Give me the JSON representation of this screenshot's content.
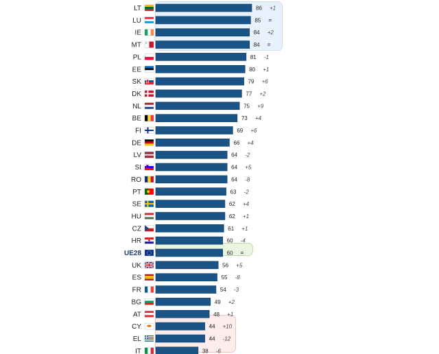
{
  "colors": {
    "bar": "#1a5486",
    "bar_edge": "#0d3a61",
    "text": "#222222",
    "change_text": "#444444",
    "highlight_top_bg": "#e7f1fb",
    "highlight_avg_bg": "#e9f5e0",
    "highlight_bottom_bg": "#fcecec"
  },
  "chart_data": {
    "type": "bar",
    "orientation": "horizontal",
    "title": "",
    "xlabel": "",
    "ylabel": "",
    "xlim": [
      0,
      100
    ],
    "grid": false,
    "legend": "none",
    "categories": [
      "LT",
      "LU",
      "IE",
      "MT",
      "PL",
      "EE",
      "SK",
      "DK",
      "NL",
      "BE",
      "FI",
      "DE",
      "LV",
      "SI",
      "RO",
      "PT",
      "SE",
      "HU",
      "CZ",
      "HR",
      "UE28",
      "UK",
      "ES",
      "FR",
      "BG",
      "AT",
      "CY",
      "EL",
      "IT"
    ],
    "values": [
      86,
      85,
      84,
      84,
      81,
      80,
      79,
      77,
      75,
      73,
      69,
      66,
      64,
      64,
      64,
      63,
      62,
      62,
      61,
      60,
      60,
      56,
      55,
      54,
      49,
      48,
      44,
      44,
      38
    ],
    "changes": [
      "+1",
      "=",
      "+2",
      "=",
      "-1",
      "+1",
      "+6",
      "+2",
      "+9",
      "+4",
      "+6",
      "+4",
      "-2",
      "+5",
      "-8",
      "-2",
      "+4",
      "+1",
      "+1",
      "-4",
      "=",
      "+5",
      "-8",
      "-3",
      "+2",
      "+1",
      "+10",
      "-12",
      "-6"
    ],
    "flags": [
      "lithuania-flag",
      "luxembourg-flag",
      "ireland-flag",
      "malta-flag",
      "poland-flag",
      "estonia-flag",
      "slovakia-flag",
      "denmark-flag",
      "netherlands-flag",
      "belgium-flag",
      "finland-flag",
      "germany-flag",
      "latvia-flag",
      "slovenia-flag",
      "romania-flag",
      "portugal-flag",
      "sweden-flag",
      "hungary-flag",
      "czechia-flag",
      "croatia-flag",
      "eu-flag",
      "uk-flag",
      "spain-flag",
      "france-flag",
      "bulgaria-flag",
      "austria-flag",
      "cyprus-flag",
      "greece-flag",
      "italy-flag"
    ],
    "emphasized_category": "UE28",
    "highlight_groups": [
      {
        "name": "top",
        "categories": [
          "LT",
          "LU",
          "IE",
          "MT"
        ]
      },
      {
        "name": "average",
        "categories": [
          "UE28"
        ]
      },
      {
        "name": "bottom",
        "categories": [
          "CY",
          "EL",
          "IT"
        ]
      }
    ]
  }
}
